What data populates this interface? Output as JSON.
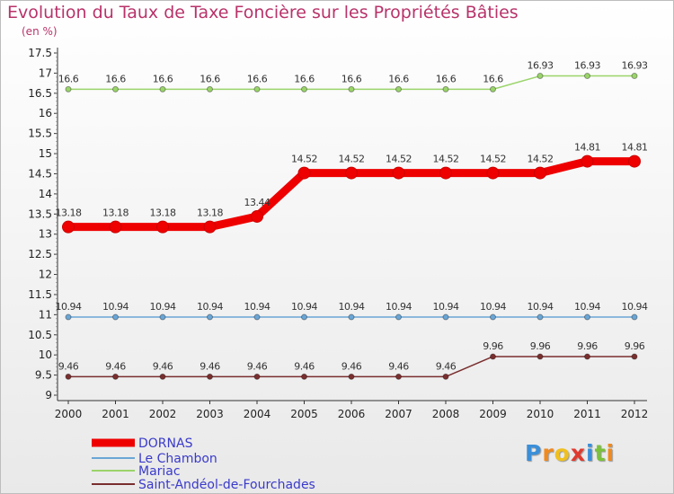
{
  "chart_data": {
    "type": "line",
    "title": "Evolution du Taux de Taxe Foncière sur les Propriétés Bâties",
    "ylabel": "(en %)",
    "ylim": [
      9,
      17.5
    ],
    "yticks": [
      "9",
      "9.5",
      "10",
      "10.5",
      "11",
      "11.5",
      "12",
      "12.5",
      "13",
      "13.5",
      "14",
      "14.5",
      "15",
      "15.5",
      "16",
      "16.5",
      "17",
      "17.5"
    ],
    "x": [
      "2000",
      "2001",
      "2002",
      "2003",
      "2004",
      "2005",
      "2006",
      "2007",
      "2008",
      "2009",
      "2010",
      "2011",
      "2012"
    ],
    "series": [
      {
        "name": "DORNAS",
        "color": "#ee0000",
        "values": [
          13.18,
          13.18,
          13.18,
          13.18,
          13.44,
          14.52,
          14.52,
          14.52,
          14.52,
          14.52,
          14.52,
          14.81,
          14.81
        ],
        "labels": [
          "13.18",
          "13.18",
          "13.18",
          "13.18",
          "13.44",
          "14.52",
          "14.52",
          "14.52",
          "14.52",
          "14.52",
          "14.52",
          "14.81",
          "14.81"
        ]
      },
      {
        "name": "Le Chambon",
        "color": "#6aa6d6",
        "values": [
          10.94,
          10.94,
          10.94,
          10.94,
          10.94,
          10.94,
          10.94,
          10.94,
          10.94,
          10.94,
          10.94,
          10.94,
          10.94
        ],
        "labels": [
          "10.94",
          "10.94",
          "10.94",
          "10.94",
          "10.94",
          "10.94",
          "10.94",
          "10.94",
          "10.94",
          "10.94",
          "10.94",
          "10.94",
          "10.94"
        ]
      },
      {
        "name": "Mariac",
        "color": "#9ad46a",
        "values": [
          16.6,
          16.6,
          16.6,
          16.6,
          16.6,
          16.6,
          16.6,
          16.6,
          16.6,
          16.6,
          16.93,
          16.93,
          16.93
        ],
        "labels": [
          "16.6",
          "16.6",
          "16.6",
          "16.6",
          "16.6",
          "16.6",
          "16.6",
          "16.6",
          "16.6",
          "16.6",
          "16.93",
          "16.93",
          "16.93"
        ]
      },
      {
        "name": "Saint-Andéol-de-Fourchades",
        "color": "#7a2e2e",
        "values": [
          9.46,
          9.46,
          9.46,
          9.46,
          9.46,
          9.46,
          9.46,
          9.46,
          9.46,
          9.96,
          9.96,
          9.96,
          9.96
        ],
        "labels": [
          "9.46",
          "9.46",
          "9.46",
          "9.46",
          "9.46",
          "9.46",
          "9.46",
          "9.46",
          "9.46",
          "9.96",
          "9.96",
          "9.96",
          "9.96"
        ]
      }
    ],
    "legend_position": "bottom-left",
    "grid": false
  },
  "logo": {
    "letters": [
      "P",
      "r",
      "o",
      "x",
      "i",
      "t",
      "i"
    ],
    "colors": [
      "#3b8fd8",
      "#f08a1e",
      "#f0c01e",
      "#e03a2e",
      "#3b8fd8",
      "#7ac23a",
      "#f08a1e"
    ]
  }
}
